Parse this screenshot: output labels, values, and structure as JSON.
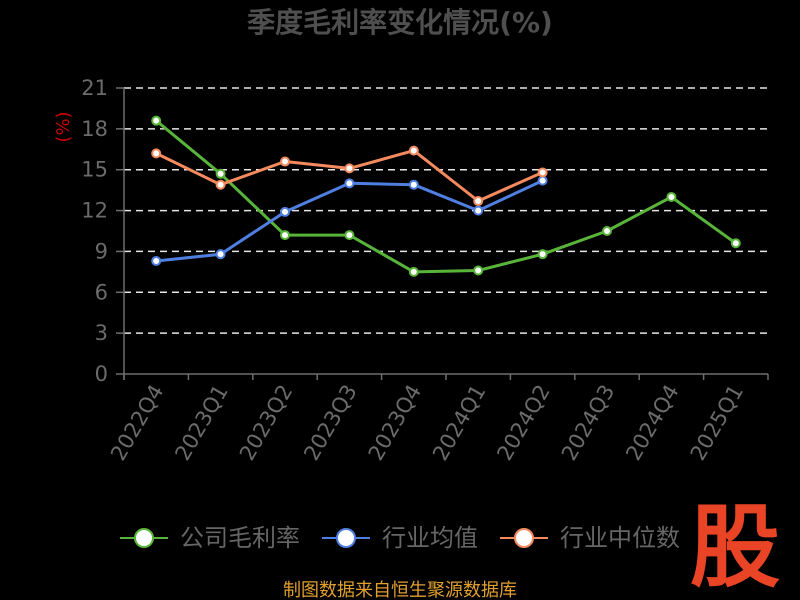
{
  "chart_data": {
    "type": "line",
    "title": "季度毛利率变化情况(%)",
    "xlabel": "",
    "ylabel": "(%)",
    "ylabel_color": "#cc0000",
    "categories": [
      "2022Q4",
      "2023Q1",
      "2023Q2",
      "2023Q3",
      "2023Q4",
      "2024Q1",
      "2024Q2",
      "2024Q3",
      "2024Q4",
      "2025Q1"
    ],
    "ylim": [
      0,
      21
    ],
    "yticks": [
      0,
      3,
      6,
      9,
      12,
      15,
      18,
      21
    ],
    "grid": true,
    "legend": "bottom",
    "series": [
      {
        "name": "公司毛利率",
        "color": "#58b53a",
        "values": [
          18.6,
          14.7,
          10.2,
          10.2,
          7.5,
          7.6,
          8.8,
          10.5,
          13.0,
          9.6
        ]
      },
      {
        "name": "行业均值",
        "color": "#4f80e1",
        "values": [
          8.3,
          8.8,
          11.9,
          14.0,
          13.9,
          12.0,
          14.2,
          null,
          null,
          null
        ]
      },
      {
        "name": "行业中位数",
        "color": "#f48a5e",
        "values": [
          16.2,
          13.9,
          15.6,
          15.1,
          16.4,
          12.7,
          14.8,
          null,
          null,
          null
        ]
      }
    ]
  },
  "source_note": "制图数据来自恒生聚源数据库",
  "source_note_color": "#e0a030",
  "logo": {
    "text": "股",
    "color": "#ea4426"
  },
  "colors": {
    "background": "#000000"
  }
}
